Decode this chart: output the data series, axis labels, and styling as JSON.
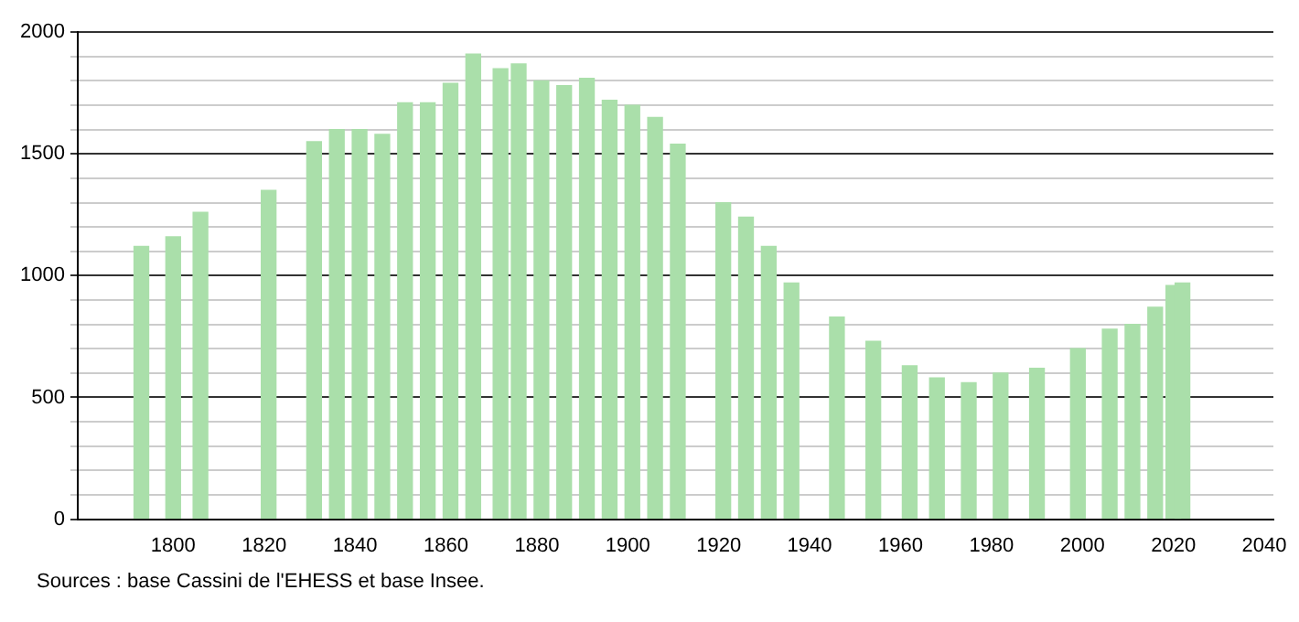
{
  "chart_data": {
    "type": "bar",
    "x": [
      1793,
      1800,
      1806,
      1821,
      1831,
      1836,
      1841,
      1846,
      1851,
      1856,
      1861,
      1866,
      1872,
      1876,
      1881,
      1886,
      1891,
      1896,
      1901,
      1906,
      1911,
      1921,
      1926,
      1931,
      1936,
      1946,
      1954,
      1962,
      1968,
      1975,
      1982,
      1990,
      1999,
      2006,
      2011,
      2016,
      2020,
      2022
    ],
    "values": [
      1120,
      1160,
      1260,
      1350,
      1550,
      1600,
      1600,
      1580,
      1710,
      1710,
      1790,
      1910,
      1850,
      1870,
      1800,
      1780,
      1810,
      1720,
      1700,
      1650,
      1540,
      1300,
      1240,
      1120,
      970,
      830,
      730,
      630,
      580,
      560,
      600,
      620,
      700,
      780,
      800,
      870,
      960,
      970
    ],
    "color": "#aadfaa",
    "xlim": [
      1779,
      2042
    ],
    "xticks": [
      1800,
      1820,
      1840,
      1860,
      1880,
      1900,
      1920,
      1940,
      1960,
      1980,
      2000,
      2020,
      2040
    ],
    "ylim": [
      0,
      2000
    ],
    "yticks": [
      0,
      {
        "value": 100,
        "label": null
      },
      {
        "value": 200,
        "label": null
      },
      {
        "value": 300,
        "label": null
      },
      {
        "value": 400,
        "label": null
      },
      500,
      {
        "value": 600,
        "label": null
      },
      {
        "value": 700,
        "label": null
      },
      {
        "value": 800,
        "label": null
      },
      {
        "value": 900,
        "label": null
      },
      1000,
      {
        "value": 1100,
        "label": null
      },
      {
        "value": 1200,
        "label": null
      },
      {
        "value": 1300,
        "label": null
      },
      {
        "value": 1400,
        "label": null
      },
      1500,
      {
        "value": 1600,
        "label": null
      },
      {
        "value": 1700,
        "label": null
      },
      {
        "value": 1800,
        "label": null
      },
      {
        "value": 1900,
        "label": null
      },
      2000
    ],
    "grid": "y",
    "annotations": [
      "Sources : base Cassini de l'EHESS et base Insee."
    ]
  }
}
